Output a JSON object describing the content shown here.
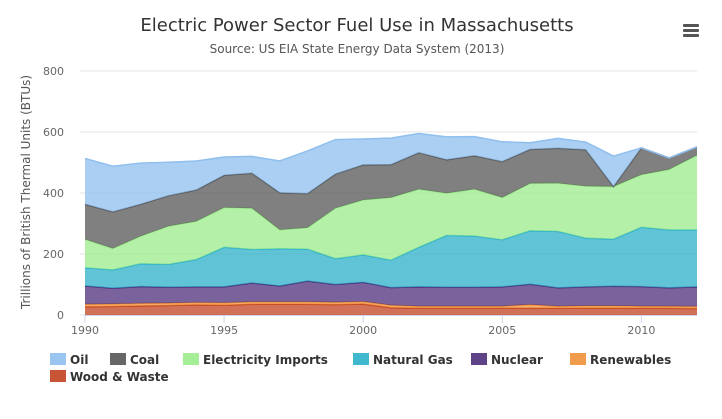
{
  "chart_data": {
    "type": "area",
    "stacked": true,
    "title": "Electric Power Sector Fuel Use in Massachusetts",
    "subtitle": "Source: US EIA State Energy Data System (2013)",
    "xlabel": "",
    "ylabel": "Trillions of British Thermal Units (BTUs)",
    "x": [
      1990,
      1991,
      1992,
      1993,
      1994,
      1995,
      1996,
      1997,
      1998,
      1999,
      2000,
      2001,
      2002,
      2003,
      2004,
      2005,
      2006,
      2007,
      2008,
      2009,
      2010,
      2011,
      2012
    ],
    "xlim": [
      1990,
      2012
    ],
    "ylim": [
      0,
      800
    ],
    "x_ticks": [
      1990,
      1995,
      2000,
      2005,
      2010
    ],
    "y_ticks": [
      0,
      200,
      400,
      600,
      800
    ],
    "grid": "horizontal",
    "legend_position": "bottom-left",
    "series": [
      {
        "name": "Wood & Waste",
        "color": "#c2421f",
        "values": [
          27,
          28,
          30,
          31,
          33,
          32,
          35,
          35,
          35,
          34,
          36,
          24,
          22,
          22,
          22,
          22,
          22,
          22,
          22,
          22,
          22,
          22,
          21
        ]
      },
      {
        "name": "Renewables",
        "color": "#f0913a",
        "values": [
          8,
          8,
          8,
          8,
          8,
          8,
          8,
          8,
          8,
          8,
          8,
          8,
          7,
          7,
          7,
          7,
          12,
          7,
          8,
          8,
          7,
          7,
          7
        ]
      },
      {
        "name": "Nuclear",
        "color": "#4e2f7b",
        "values": [
          60,
          52,
          55,
          52,
          51,
          52,
          62,
          52,
          68,
          58,
          63,
          58,
          63,
          62,
          62,
          63,
          67,
          60,
          62,
          64,
          64,
          60,
          64
        ]
      },
      {
        "name": "Natural Gas",
        "color": "#2bb0c8",
        "values": [
          60,
          60,
          75,
          75,
          90,
          130,
          110,
          122,
          105,
          85,
          90,
          90,
          130,
          170,
          168,
          155,
          175,
          185,
          160,
          155,
          195,
          190,
          187
        ]
      },
      {
        "name": "Electricity Imports",
        "color": "#9ceb8c",
        "values": [
          93,
          70,
          90,
          125,
          125,
          130,
          135,
          62,
          70,
          165,
          180,
          205,
          190,
          138,
          153,
          138,
          155,
          158,
          170,
          172,
          172,
          198,
          245
        ]
      },
      {
        "name": "Coal",
        "color": "#555555",
        "values": [
          115,
          120,
          105,
          100,
          103,
          106,
          115,
          122,
          112,
          112,
          115,
          108,
          120,
          110,
          110,
          118,
          112,
          115,
          120,
          0,
          88,
          38,
          27
        ]
      },
      {
        "name": "Oil",
        "color": "#8fbfee",
        "values": [
          150,
          150,
          135,
          110,
          95,
          60,
          55,
          104,
          140,
          113,
          85,
          87,
          63,
          75,
          63,
          65,
          22,
          32,
          25,
          100,
          0,
          0,
          0
        ]
      }
    ]
  },
  "toolbar": {
    "menu_icon": "hamburger-icon"
  }
}
